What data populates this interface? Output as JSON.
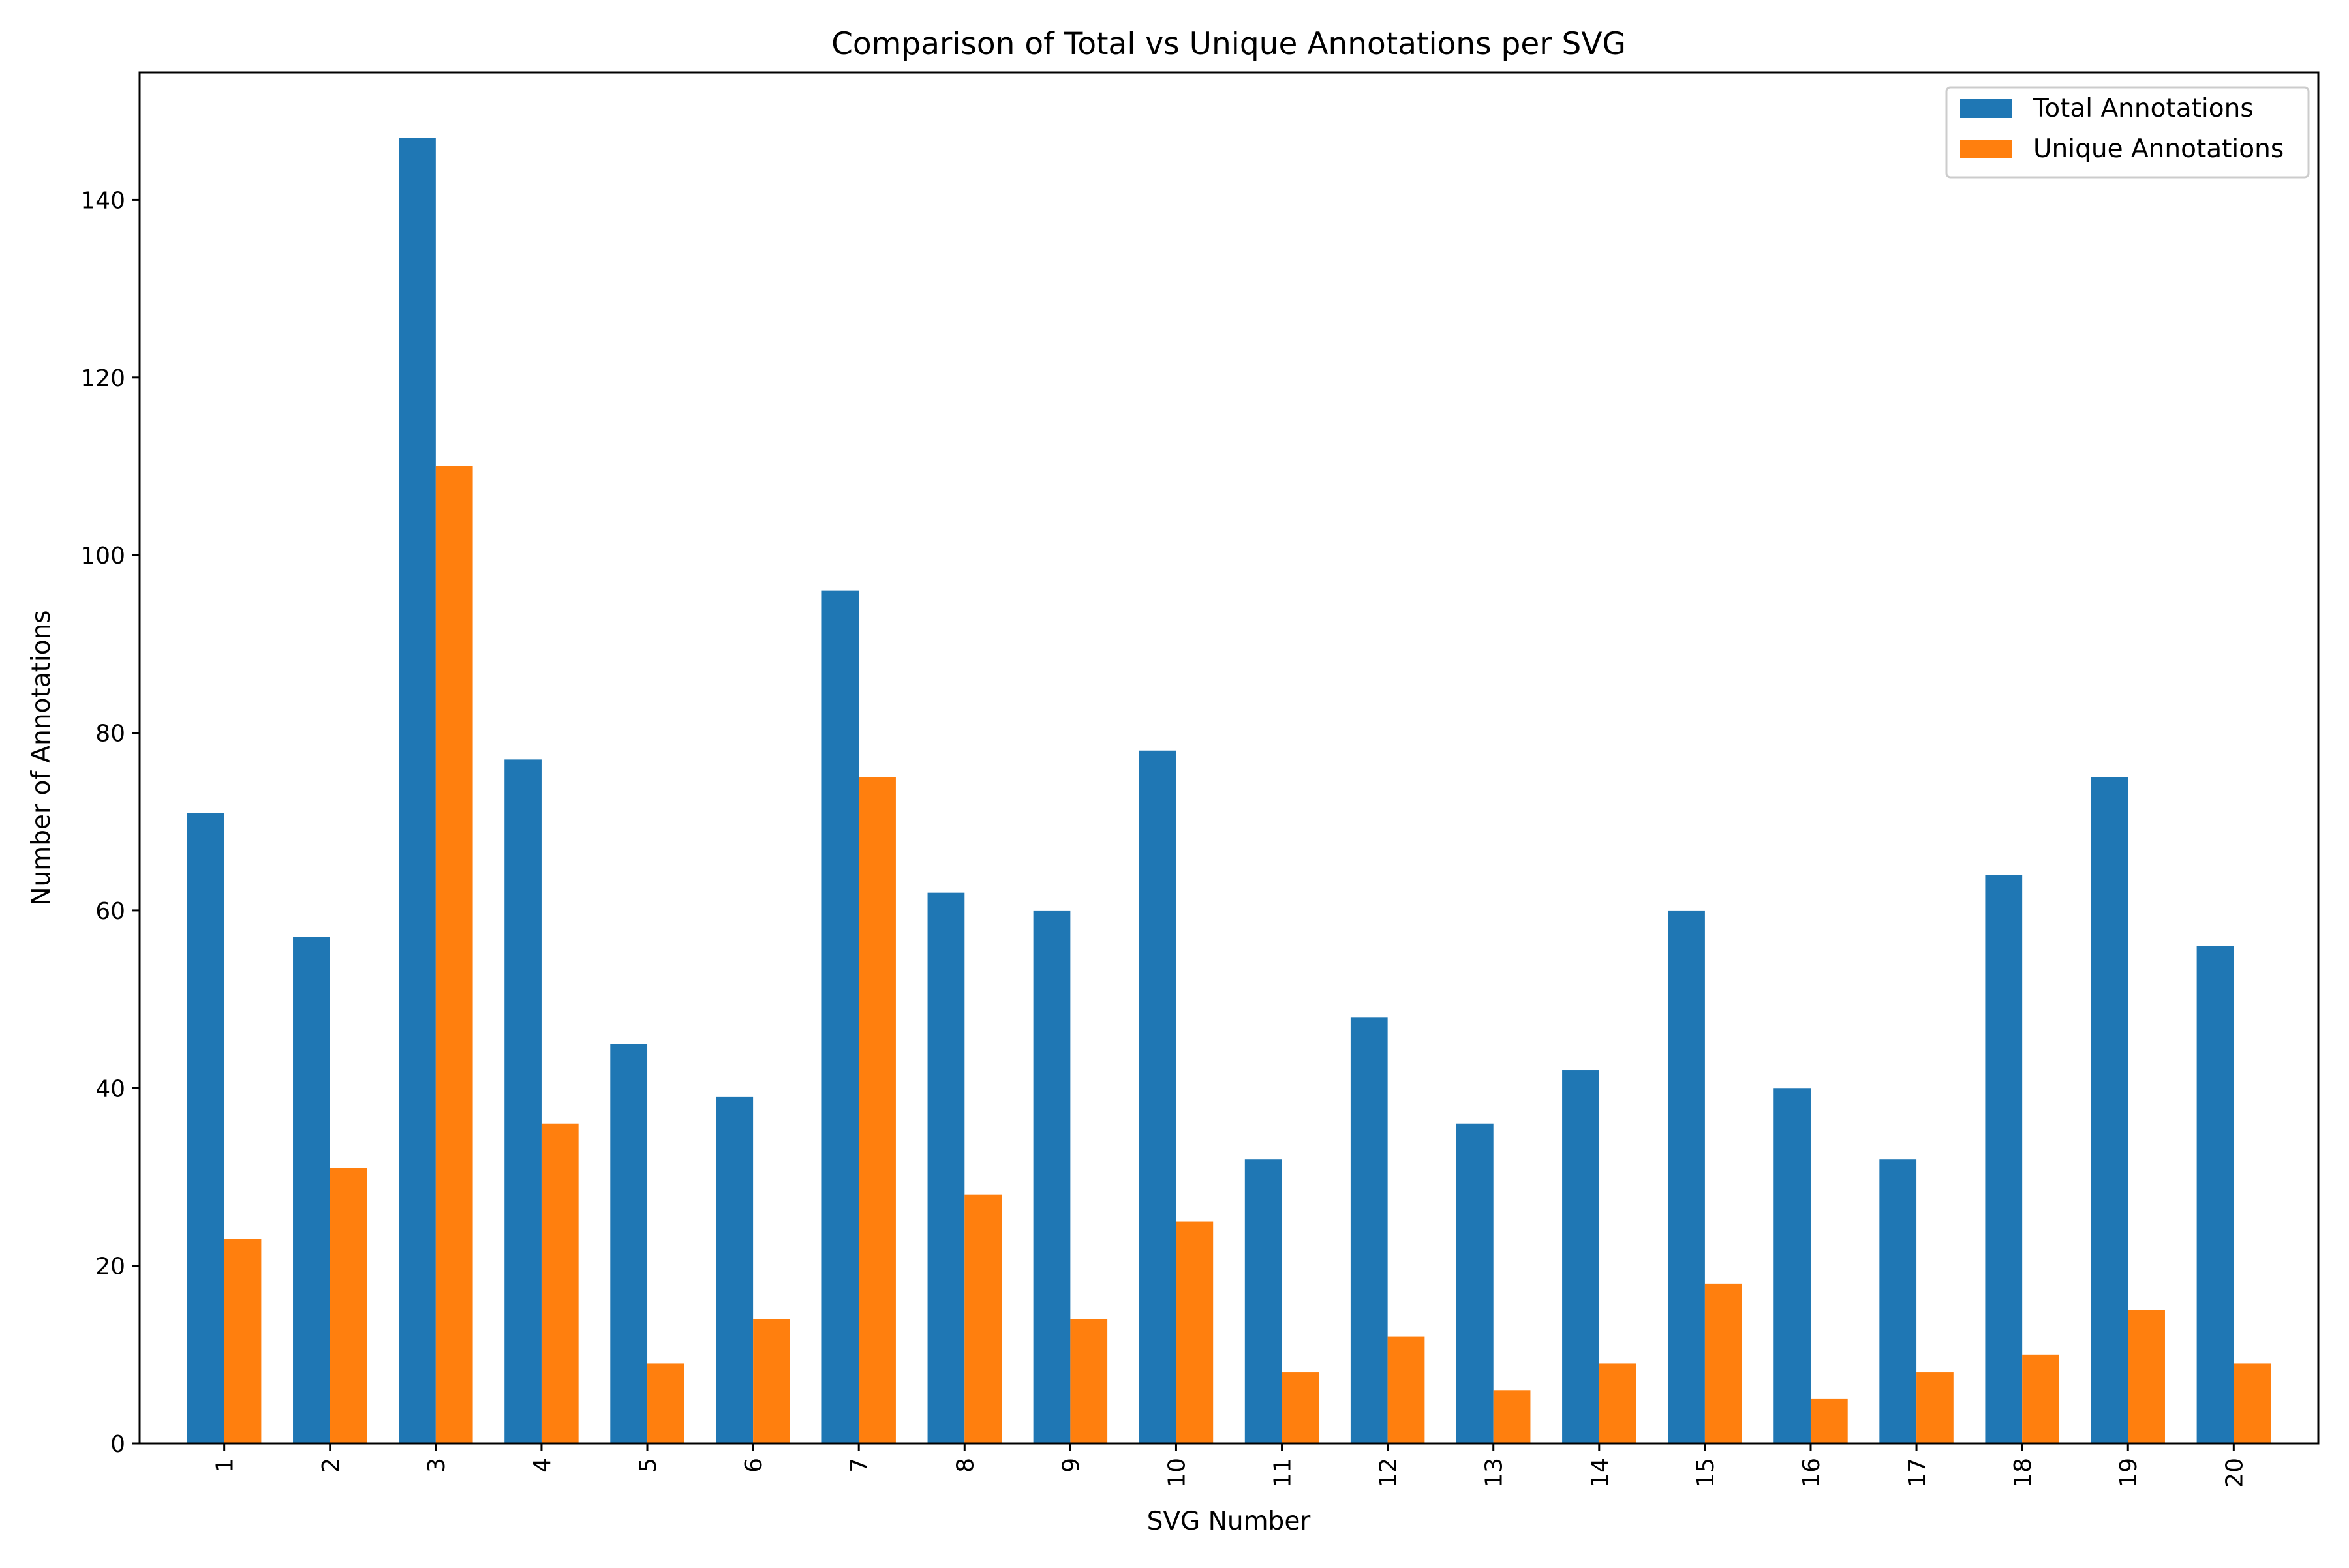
{
  "chart_data": {
    "type": "bar",
    "title": "Comparison of Total vs Unique Annotations per SVG",
    "xlabel": "SVG Number",
    "ylabel": "Number of Annotations",
    "categories": [
      "1",
      "2",
      "3",
      "4",
      "5",
      "6",
      "7",
      "8",
      "9",
      "10",
      "11",
      "12",
      "13",
      "14",
      "15",
      "16",
      "17",
      "18",
      "19",
      "20"
    ],
    "series": [
      {
        "name": "Total Annotations",
        "color": "#1f77b4",
        "values": [
          71,
          57,
          147,
          77,
          45,
          39,
          96,
          62,
          60,
          78,
          32,
          48,
          36,
          42,
          60,
          40,
          32,
          64,
          75,
          56
        ]
      },
      {
        "name": "Unique Annotations",
        "color": "#ff7f0e",
        "values": [
          23,
          31,
          110,
          36,
          9,
          14,
          75,
          28,
          14,
          25,
          8,
          12,
          6,
          9,
          18,
          5,
          8,
          10,
          15,
          9
        ]
      }
    ],
    "ylim": [
      0,
      154.35
    ],
    "yticks": [
      0,
      20,
      40,
      60,
      80,
      100,
      120,
      140
    ],
    "grid": false,
    "legend_position": "top-right",
    "x_tick_rotation": "vertical"
  }
}
